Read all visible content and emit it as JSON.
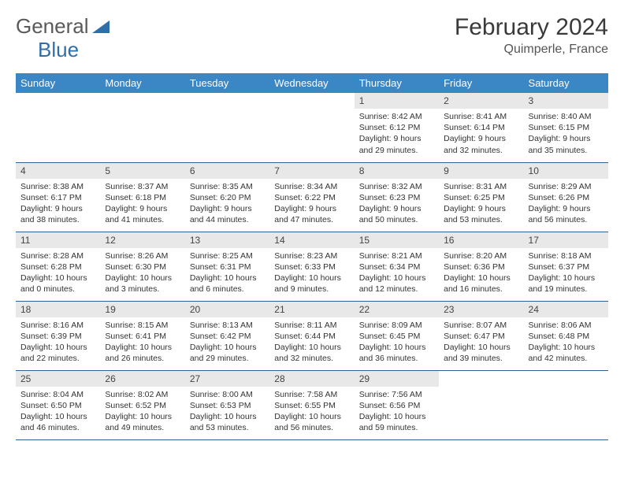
{
  "logo": {
    "word1": "General",
    "word2": "Blue"
  },
  "title": {
    "month": "February 2024",
    "location": "Quimperle, France"
  },
  "colors": {
    "header_bg": "#3b86c4",
    "header_text": "#ffffff",
    "daynum_bg": "#e8e8e8",
    "row_divider": "#2f5f8a",
    "logo_gray": "#5a5a5a",
    "logo_blue": "#2f6fa8"
  },
  "weekdays": [
    "Sunday",
    "Monday",
    "Tuesday",
    "Wednesday",
    "Thursday",
    "Friday",
    "Saturday"
  ],
  "grid": [
    [
      {
        "blank": true
      },
      {
        "blank": true
      },
      {
        "blank": true
      },
      {
        "blank": true
      },
      {
        "day": "1",
        "sunrise": "8:42 AM",
        "sunset": "6:12 PM",
        "daylight": "9 hours and 29 minutes."
      },
      {
        "day": "2",
        "sunrise": "8:41 AM",
        "sunset": "6:14 PM",
        "daylight": "9 hours and 32 minutes."
      },
      {
        "day": "3",
        "sunrise": "8:40 AM",
        "sunset": "6:15 PM",
        "daylight": "9 hours and 35 minutes."
      }
    ],
    [
      {
        "day": "4",
        "sunrise": "8:38 AM",
        "sunset": "6:17 PM",
        "daylight": "9 hours and 38 minutes."
      },
      {
        "day": "5",
        "sunrise": "8:37 AM",
        "sunset": "6:18 PM",
        "daylight": "9 hours and 41 minutes."
      },
      {
        "day": "6",
        "sunrise": "8:35 AM",
        "sunset": "6:20 PM",
        "daylight": "9 hours and 44 minutes."
      },
      {
        "day": "7",
        "sunrise": "8:34 AM",
        "sunset": "6:22 PM",
        "daylight": "9 hours and 47 minutes."
      },
      {
        "day": "8",
        "sunrise": "8:32 AM",
        "sunset": "6:23 PM",
        "daylight": "9 hours and 50 minutes."
      },
      {
        "day": "9",
        "sunrise": "8:31 AM",
        "sunset": "6:25 PM",
        "daylight": "9 hours and 53 minutes."
      },
      {
        "day": "10",
        "sunrise": "8:29 AM",
        "sunset": "6:26 PM",
        "daylight": "9 hours and 56 minutes."
      }
    ],
    [
      {
        "day": "11",
        "sunrise": "8:28 AM",
        "sunset": "6:28 PM",
        "daylight": "10 hours and 0 minutes."
      },
      {
        "day": "12",
        "sunrise": "8:26 AM",
        "sunset": "6:30 PM",
        "daylight": "10 hours and 3 minutes."
      },
      {
        "day": "13",
        "sunrise": "8:25 AM",
        "sunset": "6:31 PM",
        "daylight": "10 hours and 6 minutes."
      },
      {
        "day": "14",
        "sunrise": "8:23 AM",
        "sunset": "6:33 PM",
        "daylight": "10 hours and 9 minutes."
      },
      {
        "day": "15",
        "sunrise": "8:21 AM",
        "sunset": "6:34 PM",
        "daylight": "10 hours and 12 minutes."
      },
      {
        "day": "16",
        "sunrise": "8:20 AM",
        "sunset": "6:36 PM",
        "daylight": "10 hours and 16 minutes."
      },
      {
        "day": "17",
        "sunrise": "8:18 AM",
        "sunset": "6:37 PM",
        "daylight": "10 hours and 19 minutes."
      }
    ],
    [
      {
        "day": "18",
        "sunrise": "8:16 AM",
        "sunset": "6:39 PM",
        "daylight": "10 hours and 22 minutes."
      },
      {
        "day": "19",
        "sunrise": "8:15 AM",
        "sunset": "6:41 PM",
        "daylight": "10 hours and 26 minutes."
      },
      {
        "day": "20",
        "sunrise": "8:13 AM",
        "sunset": "6:42 PM",
        "daylight": "10 hours and 29 minutes."
      },
      {
        "day": "21",
        "sunrise": "8:11 AM",
        "sunset": "6:44 PM",
        "daylight": "10 hours and 32 minutes."
      },
      {
        "day": "22",
        "sunrise": "8:09 AM",
        "sunset": "6:45 PM",
        "daylight": "10 hours and 36 minutes."
      },
      {
        "day": "23",
        "sunrise": "8:07 AM",
        "sunset": "6:47 PM",
        "daylight": "10 hours and 39 minutes."
      },
      {
        "day": "24",
        "sunrise": "8:06 AM",
        "sunset": "6:48 PM",
        "daylight": "10 hours and 42 minutes."
      }
    ],
    [
      {
        "day": "25",
        "sunrise": "8:04 AM",
        "sunset": "6:50 PM",
        "daylight": "10 hours and 46 minutes."
      },
      {
        "day": "26",
        "sunrise": "8:02 AM",
        "sunset": "6:52 PM",
        "daylight": "10 hours and 49 minutes."
      },
      {
        "day": "27",
        "sunrise": "8:00 AM",
        "sunset": "6:53 PM",
        "daylight": "10 hours and 53 minutes."
      },
      {
        "day": "28",
        "sunrise": "7:58 AM",
        "sunset": "6:55 PM",
        "daylight": "10 hours and 56 minutes."
      },
      {
        "day": "29",
        "sunrise": "7:56 AM",
        "sunset": "6:56 PM",
        "daylight": "10 hours and 59 minutes."
      },
      {
        "blank": true
      },
      {
        "blank": true
      }
    ]
  ],
  "labels": {
    "sunrise": "Sunrise:",
    "sunset": "Sunset:",
    "daylight": "Daylight:"
  }
}
